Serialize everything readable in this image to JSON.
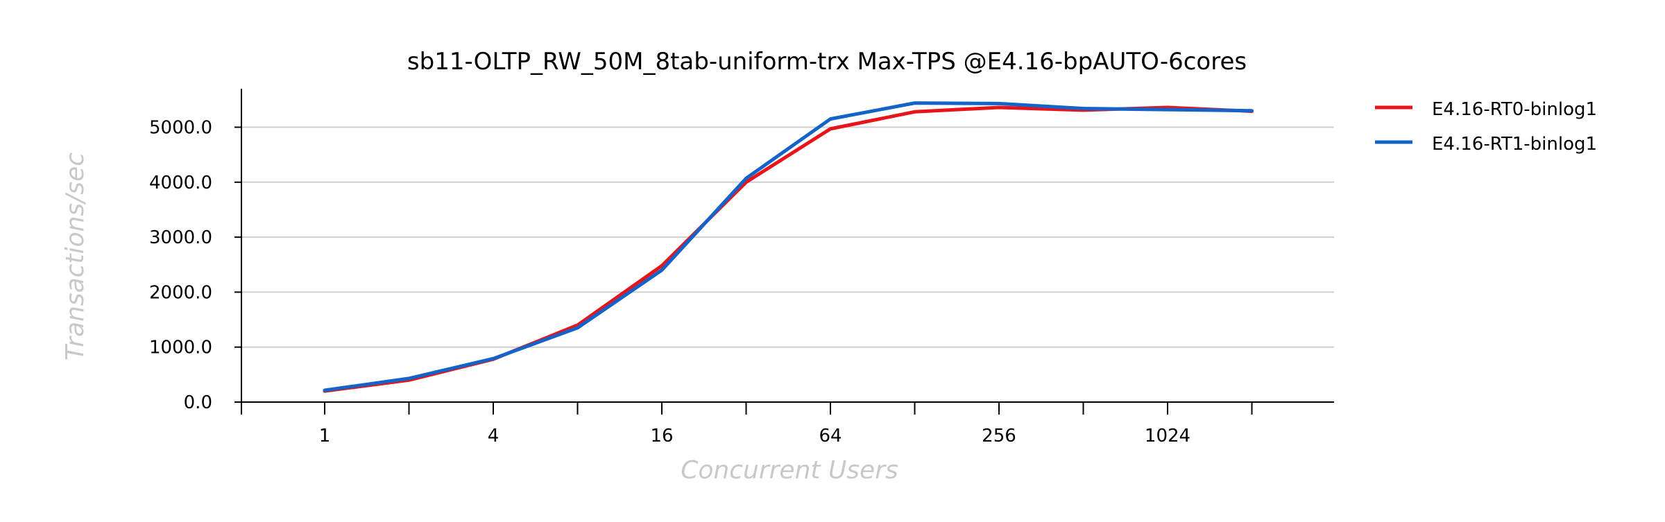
{
  "chart_data": {
    "type": "line",
    "title": "sb11-OLTP_RW_50M_8tab-uniform-trx Max-TPS @E4.16-bpAUTO-6cores",
    "xlabel": "Concurrent Users",
    "ylabel": "Transactions/sec",
    "x_scale": "log2",
    "x": [
      1,
      2,
      4,
      8,
      16,
      32,
      64,
      128,
      256,
      512,
      1024,
      2048
    ],
    "x_tick_labels": [
      "1",
      "",
      "4",
      "",
      "16",
      "",
      "64",
      "",
      "256",
      "",
      "1024",
      ""
    ],
    "y_ticks": [
      0,
      1000,
      2000,
      3000,
      4000,
      5000
    ],
    "y_tick_labels": [
      "0.0",
      "1000.0",
      "2000.0",
      "3000.0",
      "4000.0",
      "5000.0"
    ],
    "ylim": [
      0,
      5700
    ],
    "grid": "horizontal",
    "legend_position": "right",
    "series": [
      {
        "name": "E4.16-RT0-binlog1",
        "color": "#e8141a",
        "values": [
          200,
          400,
          780,
          1400,
          2480,
          4000,
          4970,
          5280,
          5360,
          5310,
          5360,
          5290
        ]
      },
      {
        "name": "E4.16-RT1-binlog1",
        "color": "#1463c8",
        "values": [
          215,
          430,
          790,
          1350,
          2400,
          4070,
          5150,
          5440,
          5430,
          5340,
          5320,
          5300
        ]
      }
    ]
  }
}
